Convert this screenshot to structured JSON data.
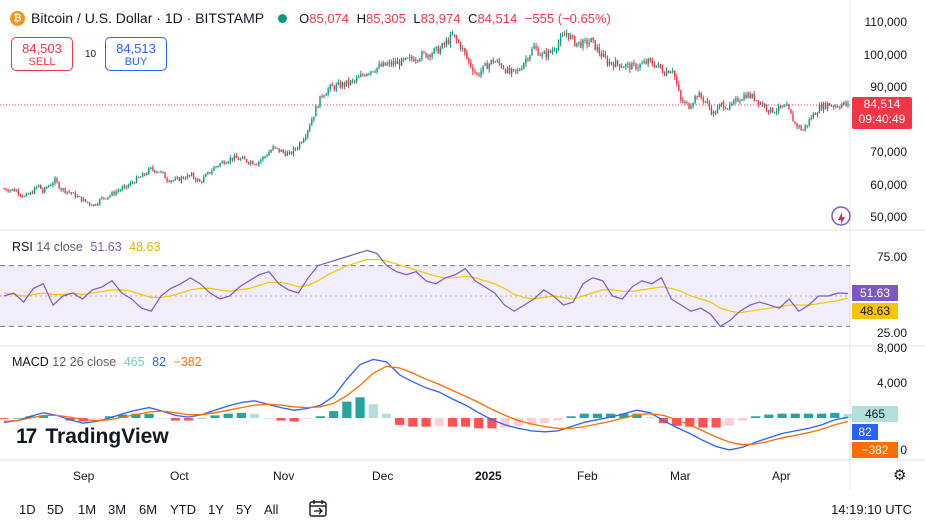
{
  "header": {
    "symbol": "Bitcoin / U.S. Dollar · 1D · BITSTAMP",
    "o_key": "O",
    "o_val": "85,074",
    "h_key": "H",
    "h_val": "85,305",
    "l_key": "L",
    "l_val": "83,974",
    "c_key": "C",
    "c_val": "84,514",
    "change": "−555 (−0.65%)"
  },
  "trade": {
    "sell_price": "84,503",
    "sell_label": "SELL",
    "buy_price": "84,513",
    "buy_label": "BUY",
    "spread": "10"
  },
  "last_price": {
    "price": "84,514",
    "countdown": "09:40:49"
  },
  "rsi": {
    "title": "RSI",
    "params": "14 close",
    "value": "51.63",
    "ma_value": "48.63",
    "line_color": "#7e57c2",
    "ma_color": "#f7c500"
  },
  "macd": {
    "title": "MACD",
    "params": "12 26 close",
    "hist_value": "465",
    "macd_value": "82",
    "signal_value": "−382",
    "hist_color": "#26a69a",
    "macd_color": "#2962ff",
    "signal_color": "#ff6d00"
  },
  "brand": {
    "name": "TradingView"
  },
  "timeframes": [
    "1D",
    "5D",
    "1M",
    "3M",
    "6M",
    "YTD",
    "1Y",
    "5Y",
    "All"
  ],
  "clock": "14:19:10 UTC",
  "colors": {
    "up": "#089981",
    "down": "#f23645"
  },
  "chart_data": [
    {
      "type": "candlestick",
      "title": "Bitcoin / U.S. Dollar · 1D · BITSTAMP",
      "x_tick_labels": [
        "Sep",
        "Oct",
        "Nov",
        "Dec",
        "2025",
        "Feb",
        "Mar",
        "Apr"
      ],
      "y_tick_labels": [
        "110,000",
        "100,000",
        "90,000",
        "70,000",
        "60,000",
        "50,000"
      ],
      "ylim": [
        46000,
        112000
      ],
      "series": [
        {
          "name": "BTCUSD",
          "close_path": [
            [
              0,
              59000
            ],
            [
              6,
              58500
            ],
            [
              10,
              56500
            ],
            [
              13,
              57500
            ],
            [
              17,
              60000
            ],
            [
              19,
              58000
            ],
            [
              21,
              59500
            ],
            [
              25,
              61500
            ],
            [
              28,
              59000
            ],
            [
              32,
              58000
            ],
            [
              36,
              56500
            ],
            [
              40,
              55000
            ],
            [
              44,
              54000
            ],
            [
              48,
              56000
            ],
            [
              52,
              57000
            ],
            [
              56,
              58500
            ],
            [
              60,
              59500
            ],
            [
              64,
              61500
            ],
            [
              68,
              63000
            ],
            [
              72,
              65000
            ],
            [
              76,
              64500
            ],
            [
              80,
              62000
            ],
            [
              84,
              61500
            ],
            [
              88,
              62500
            ],
            [
              92,
              63000
            ],
            [
              96,
              61000
            ],
            [
              100,
              63500
            ],
            [
              104,
              66000
            ],
            [
              108,
              67500
            ],
            [
              112,
              68500
            ],
            [
              116,
              68000
            ],
            [
              120,
              67500
            ],
            [
              124,
              67000
            ],
            [
              128,
              69000
            ],
            [
              132,
              71500
            ],
            [
              136,
              70500
            ],
            [
              140,
              69500
            ],
            [
              144,
              72000
            ],
            [
              148,
              76000
            ],
            [
              152,
              82000
            ],
            [
              156,
              88000
            ],
            [
              160,
              90000
            ],
            [
              166,
              91000
            ],
            [
              172,
              92000
            ],
            [
              178,
              95000
            ],
            [
              184,
              96500
            ],
            [
              190,
              97500
            ],
            [
              196,
              98000
            ],
            [
              202,
              99500
            ],
            [
              208,
              100500
            ],
            [
              214,
              102000
            ],
            [
              220,
              106000
            ],
            [
              224,
              103000
            ],
            [
              228,
              98000
            ],
            [
              232,
              94000
            ],
            [
              236,
              96500
            ],
            [
              240,
              98500
            ],
            [
              244,
              97000
            ],
            [
              248,
              94500
            ],
            [
              252,
              95000
            ],
            [
              256,
              99000
            ],
            [
              260,
              102500
            ],
            [
              264,
              100000
            ],
            [
              268,
              101000
            ],
            [
              272,
              104000
            ],
            [
              276,
              107000
            ],
            [
              280,
              104000
            ],
            [
              284,
              103500
            ],
            [
              288,
              104500
            ],
            [
              292,
              101000
            ],
            [
              296,
              98000
            ],
            [
              300,
              97500
            ],
            [
              304,
              97000
            ],
            [
              308,
              96500
            ],
            [
              312,
              97000
            ],
            [
              316,
              98000
            ],
            [
              320,
              97000
            ],
            [
              324,
              95000
            ],
            [
              328,
              96000
            ],
            [
              332,
              86000
            ],
            [
              336,
              84500
            ],
            [
              340,
              88000
            ],
            [
              344,
              86000
            ],
            [
              348,
              82000
            ],
            [
              352,
              85000
            ],
            [
              356,
              84000
            ],
            [
              360,
              86500
            ],
            [
              364,
              88000
            ],
            [
              368,
              87000
            ],
            [
              372,
              85000
            ],
            [
              376,
              83000
            ],
            [
              380,
              83500
            ],
            [
              384,
              84000
            ],
            [
              388,
              79000
            ],
            [
              392,
              77000
            ],
            [
              396,
              81000
            ],
            [
              400,
              84000
            ],
            [
              404,
              85000
            ],
            [
              408,
              84500
            ],
            [
              412,
              85074
            ],
            [
              414,
              84514
            ]
          ]
        }
      ]
    },
    {
      "type": "line",
      "title": "RSI 14 close",
      "y_tick_labels": [
        "75.00",
        "25.00"
      ],
      "ylim": [
        20,
        82
      ],
      "series": [
        {
          "name": "RSI",
          "values": [
            50,
            52,
            46,
            55,
            58,
            44,
            50,
            52,
            48,
            54,
            56,
            60,
            52,
            48,
            42,
            40,
            50,
            55,
            58,
            62,
            58,
            52,
            48,
            50,
            56,
            60,
            64,
            66,
            58,
            54,
            52,
            62,
            70,
            72,
            74,
            76,
            78,
            80,
            78,
            70,
            66,
            64,
            66,
            60,
            58,
            62,
            64,
            68,
            60,
            56,
            52,
            44,
            40,
            44,
            48,
            54,
            50,
            44,
            46,
            58,
            62,
            60,
            50,
            48,
            56,
            60,
            58,
            62,
            48,
            44,
            40,
            42,
            38,
            30,
            34,
            40,
            44,
            46,
            44,
            42,
            48,
            40,
            44,
            50,
            50,
            52,
            51.63
          ]
        },
        {
          "name": "MA",
          "values": [
            52,
            51,
            50,
            51,
            52,
            51,
            51,
            52,
            51,
            52,
            53,
            54,
            54,
            53,
            51,
            49,
            49,
            50,
            52,
            54,
            55,
            55,
            54,
            53,
            54,
            55,
            57,
            59,
            59,
            58,
            56,
            57,
            60,
            64,
            67,
            70,
            72,
            74,
            74,
            73,
            71,
            69,
            67,
            65,
            63,
            62,
            62,
            63,
            62,
            60,
            58,
            55,
            51,
            49,
            48,
            49,
            50,
            49,
            48,
            50,
            52,
            54,
            54,
            53,
            53,
            54,
            55,
            56,
            55,
            53,
            50,
            48,
            46,
            42,
            40,
            39,
            40,
            41,
            42,
            43,
            44,
            44,
            44,
            45,
            46,
            47,
            48.63
          ]
        }
      ]
    },
    {
      "type": "line",
      "title": "MACD 12 26 close",
      "y_tick_labels": [
        "8,000",
        "4,000",
        "0"
      ],
      "ylim": [
        -5000,
        8500
      ],
      "series": [
        {
          "name": "MACD",
          "values": [
            -500,
            -300,
            200,
            600,
            300,
            -200,
            -600,
            -400,
            0,
            500,
            900,
            1200,
            800,
            300,
            100,
            400,
            900,
            1400,
            1800,
            2000,
            1600,
            1200,
            900,
            1100,
            1500,
            2500,
            4500,
            6200,
            6800,
            6500,
            5000,
            4200,
            3500,
            3000,
            2200,
            1500,
            600,
            -200,
            -800,
            -1200,
            -1500,
            -1600,
            -1500,
            -1000,
            -500,
            -200,
            100,
            500,
            900,
            600,
            -300,
            -1100,
            -1800,
            -2600,
            -3300,
            -3700,
            -3400,
            -2800,
            -2300,
            -1800,
            -1500,
            -1200,
            -800,
            -200,
            82
          ]
        },
        {
          "name": "Signal",
          "values": [
            -400,
            -300,
            0,
            300,
            300,
            100,
            -200,
            -300,
            -200,
            100,
            400,
            700,
            800,
            600,
            400,
            400,
            600,
            900,
            1200,
            1500,
            1600,
            1500,
            1300,
            1200,
            1300,
            1700,
            2600,
            3800,
            5200,
            6000,
            5800,
            5200,
            4500,
            3900,
            3200,
            2500,
            1800,
            1000,
            300,
            -300,
            -700,
            -1000,
            -1200,
            -1200,
            -1000,
            -700,
            -400,
            0,
            400,
            500,
            300,
            -200,
            -800,
            -1500,
            -2200,
            -2800,
            -3100,
            -3000,
            -2700,
            -2300,
            -2000,
            -1700,
            -1300,
            -800,
            -382
          ]
        },
        {
          "name": "Histogram",
          "values": [
            -100,
            0,
            200,
            300,
            0,
            -300,
            -400,
            -100,
            200,
            400,
            500,
            500,
            0,
            -300,
            -300,
            0,
            300,
            500,
            600,
            500,
            0,
            -300,
            -400,
            -100,
            200,
            800,
            1900,
            2400,
            1600,
            500,
            -800,
            -1000,
            -1000,
            -900,
            -1000,
            -1000,
            -1200,
            -1200,
            -1100,
            -900,
            -800,
            -600,
            -300,
            200,
            500,
            500,
            500,
            500,
            500,
            100,
            -600,
            -900,
            -1000,
            -1100,
            -1100,
            -900,
            -300,
            200,
            400,
            500,
            500,
            500,
            500,
            600,
            465
          ]
        }
      ]
    }
  ]
}
